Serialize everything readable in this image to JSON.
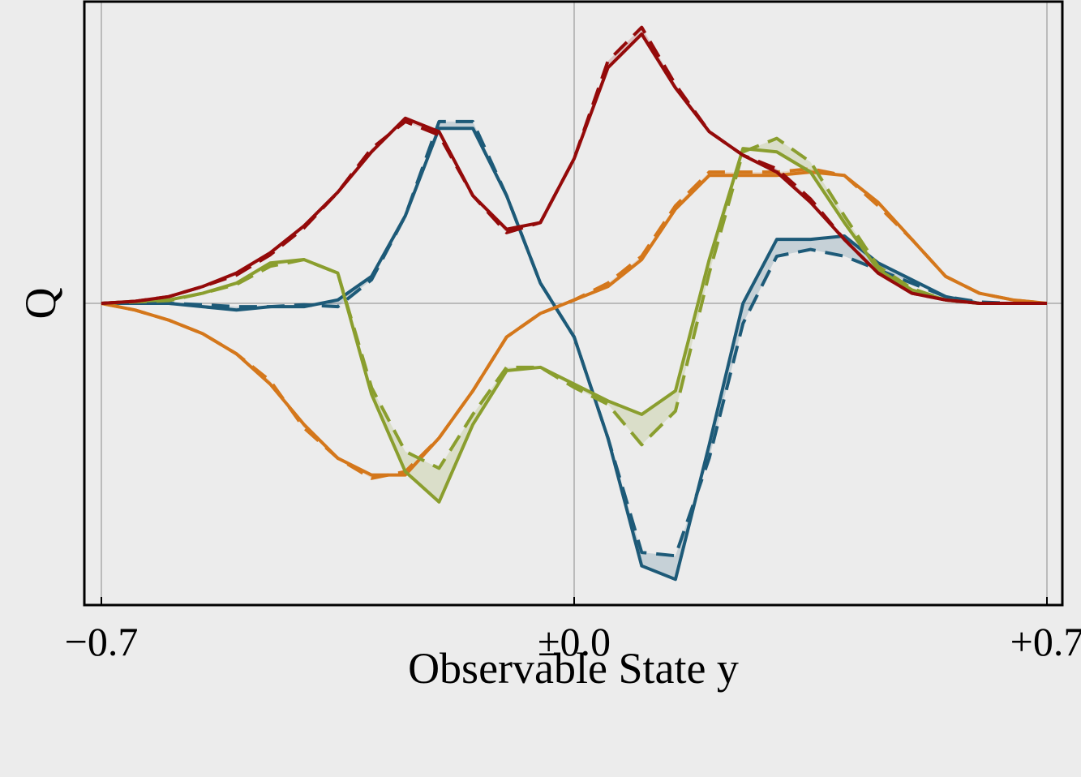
{
  "chart_data": {
    "type": "line",
    "xlabel": "Observable State y",
    "ylabel": "Q",
    "xlim": [
      -0.7,
      0.7
    ],
    "ylim": [
      -4.45,
      4.4
    ],
    "x_ticks": [
      -0.7,
      0.0,
      0.7
    ],
    "x_tick_labels": [
      "−0.7",
      "±0.0",
      "+0.7"
    ],
    "grid_lines": {
      "x": [
        -0.7,
        0.0,
        0.7
      ],
      "y": [
        0
      ]
    },
    "colors": {
      "blue": "#1d5a78",
      "orange": "#d4771b",
      "green": "#8a9e2e",
      "red": "#940a0a",
      "background": "#ececec"
    },
    "x": [
      -0.7,
      -0.65,
      -0.6,
      -0.55,
      -0.5,
      -0.45,
      -0.4,
      -0.35,
      -0.3,
      -0.25,
      -0.2,
      -0.15,
      -0.1,
      -0.05,
      0.0,
      0.05,
      0.1,
      0.15,
      0.2,
      0.25,
      0.3,
      0.35,
      0.4,
      0.45,
      0.5,
      0.55,
      0.6,
      0.65,
      0.7
    ],
    "series": [
      {
        "color": "blue",
        "solid": [
          0,
          0,
          0,
          -0.05,
          -0.1,
          -0.05,
          -0.05,
          0.05,
          0.4,
          1.3,
          2.6,
          2.6,
          1.6,
          0.3,
          -0.5,
          -2.0,
          -3.9,
          -4.1,
          -2.1,
          0,
          0.95,
          0.95,
          1.0,
          0.6,
          0.35,
          0.1,
          0,
          0,
          0
        ],
        "dashed": [
          0,
          0,
          0,
          -0.02,
          -0.05,
          -0.05,
          -0.02,
          -0.05,
          0.35,
          1.3,
          2.7,
          2.7,
          1.6,
          0.3,
          -0.5,
          -2.0,
          -3.7,
          -3.75,
          -2.3,
          -0.3,
          0.7,
          0.8,
          0.7,
          0.5,
          0.3,
          0.1,
          0.02,
          0,
          0
        ]
      },
      {
        "color": "orange",
        "solid": [
          0,
          -0.1,
          -0.25,
          -0.45,
          -0.75,
          -1.2,
          -1.8,
          -2.3,
          -2.55,
          -2.55,
          -2.0,
          -1.3,
          -0.5,
          -0.15,
          0.05,
          0.25,
          0.65,
          1.4,
          1.9,
          1.9,
          1.9,
          1.95,
          1.9,
          1.5,
          0.95,
          0.4,
          0.15,
          0.05,
          0
        ],
        "dashed": [
          0,
          -0.1,
          -0.25,
          -0.45,
          -0.75,
          -1.15,
          -1.85,
          -2.3,
          -2.6,
          -2.5,
          -2.0,
          -1.3,
          -0.5,
          -0.15,
          0.05,
          0.3,
          0.7,
          1.45,
          1.95,
          1.95,
          1.95,
          2.0,
          1.9,
          1.45,
          0.95,
          0.4,
          0.15,
          0.05,
          0
        ]
      },
      {
        "color": "green",
        "solid": [
          0,
          0.03,
          0.05,
          0.15,
          0.3,
          0.6,
          0.65,
          0.45,
          -1.35,
          -2.5,
          -2.95,
          -1.8,
          -1.0,
          -0.95,
          -1.2,
          -1.45,
          -1.65,
          -1.3,
          0.65,
          2.3,
          2.25,
          1.95,
          1.2,
          0.5,
          0.2,
          0.05,
          0,
          0,
          0
        ],
        "dashed": [
          0,
          0.02,
          0.04,
          0.15,
          0.28,
          0.55,
          0.65,
          0.45,
          -1.25,
          -2.2,
          -2.45,
          -1.65,
          -0.95,
          -0.95,
          -1.25,
          -1.5,
          -2.1,
          -1.6,
          0.45,
          2.25,
          2.45,
          2.1,
          1.3,
          0.55,
          0.22,
          0.05,
          0,
          0,
          0
        ],
        "band": [
          7,
          12
        ]
      },
      {
        "color": "red",
        "solid": [
          0,
          0.03,
          0.1,
          0.25,
          0.45,
          0.75,
          1.15,
          1.65,
          2.25,
          2.75,
          2.55,
          1.6,
          1.1,
          1.2,
          2.15,
          3.5,
          4.0,
          3.2,
          2.55,
          2.2,
          1.95,
          1.5,
          0.95,
          0.45,
          0.15,
          0.05,
          0,
          0,
          0
        ],
        "dashed": [
          0,
          0.03,
          0.1,
          0.25,
          0.42,
          0.72,
          1.12,
          1.65,
          2.3,
          2.7,
          2.5,
          1.6,
          1.05,
          1.2,
          2.15,
          3.6,
          4.1,
          3.25,
          2.55,
          2.2,
          2.0,
          1.55,
          0.95,
          0.45,
          0.15,
          0.05,
          0,
          0,
          0
        ]
      }
    ]
  }
}
